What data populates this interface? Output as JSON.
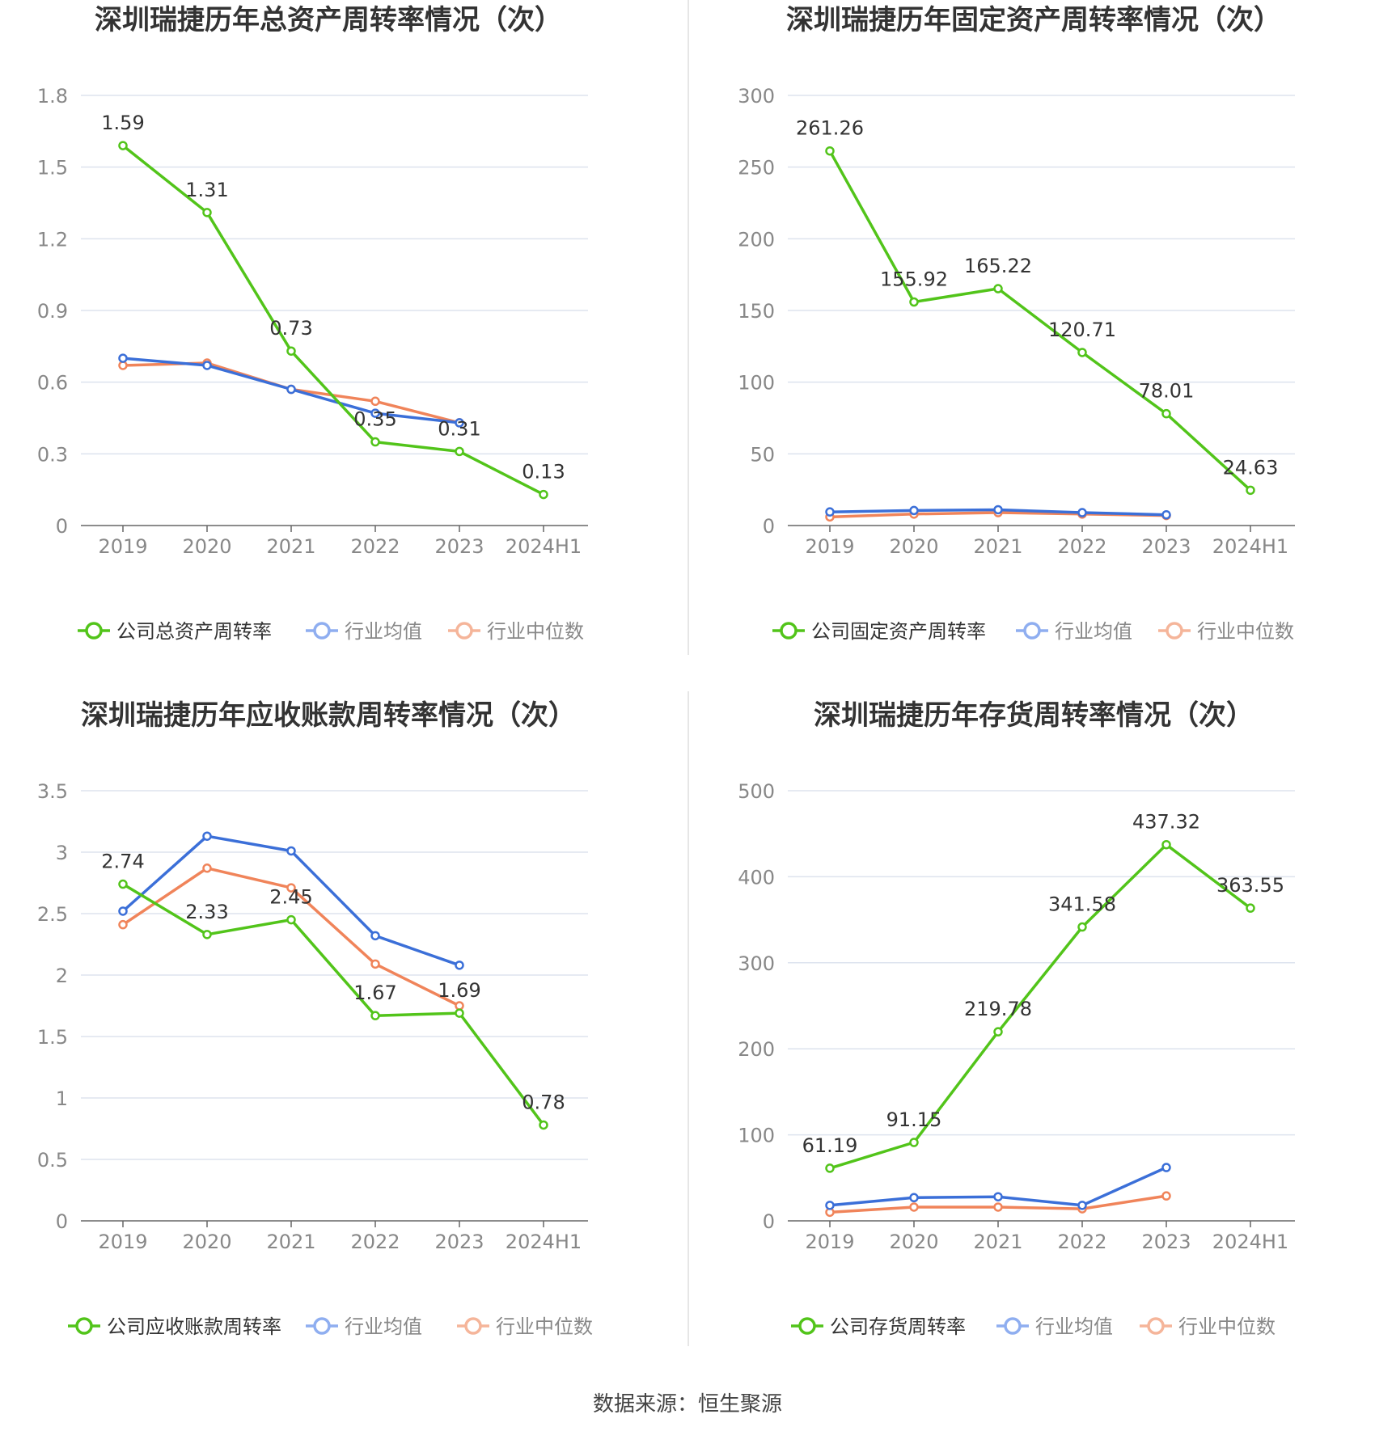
{
  "colors": {
    "company": "#52C41A",
    "avg": "#3B6FD8",
    "median": "#F0845A",
    "legend_avg": "#8FAEF0",
    "legend_median": "#F5B59A",
    "grid": "#DDE3EE",
    "axis": "#666666",
    "tick_text": "#888888",
    "title": "#333333",
    "label": "#333333"
  },
  "source": "数据来源：恒生聚源",
  "chart_data": [
    {
      "type": "line",
      "title": "深圳瑞捷历年总资产周转率情况（次）",
      "categories": [
        "2019",
        "2020",
        "2021",
        "2022",
        "2023",
        "2024H1"
      ],
      "ylim": [
        0,
        1.8
      ],
      "yticks": [
        "0",
        "0.3",
        "0.6",
        "0.9",
        "1.2",
        "1.5",
        "1.8"
      ],
      "ytick_values": [
        0,
        0.3,
        0.6,
        0.9,
        1.2,
        1.5,
        1.8
      ],
      "series": [
        {
          "name": "公司总资产周转率",
          "values": [
            1.59,
            1.31,
            0.73,
            0.35,
            0.31,
            0.13
          ],
          "labels": [
            "1.59",
            "1.31",
            "0.73",
            "0.35",
            "0.31",
            "0.13"
          ]
        },
        {
          "name": "行业均值",
          "values": [
            0.7,
            0.67,
            0.57,
            0.47,
            0.43,
            null
          ]
        },
        {
          "name": "行业中位数",
          "values": [
            0.67,
            0.68,
            0.57,
            0.52,
            0.43,
            null
          ]
        }
      ]
    },
    {
      "type": "line",
      "title": "深圳瑞捷历年固定资产周转率情况（次）",
      "categories": [
        "2019",
        "2020",
        "2021",
        "2022",
        "2023",
        "2024H1"
      ],
      "ylim": [
        0,
        300
      ],
      "yticks": [
        "0",
        "50",
        "100",
        "150",
        "200",
        "250",
        "300"
      ],
      "ytick_values": [
        0,
        50,
        100,
        150,
        200,
        250,
        300
      ],
      "series": [
        {
          "name": "公司固定资产周转率",
          "values": [
            261.26,
            155.92,
            165.22,
            120.71,
            78.01,
            24.63
          ],
          "labels": [
            "261.26",
            "155.92",
            "165.22",
            "120.71",
            "78.01",
            "24.63"
          ]
        },
        {
          "name": "行业均值",
          "values": [
            9.5,
            10.5,
            11,
            9,
            7.5,
            null
          ]
        },
        {
          "name": "行业中位数",
          "values": [
            6,
            8,
            9,
            8,
            7,
            null
          ]
        }
      ]
    },
    {
      "type": "line",
      "title": "深圳瑞捷历年应收账款周转率情况（次）",
      "categories": [
        "2019",
        "2020",
        "2021",
        "2022",
        "2023",
        "2024H1"
      ],
      "ylim": [
        0,
        3.5
      ],
      "yticks": [
        "0",
        "0.5",
        "1",
        "1.5",
        "2",
        "2.5",
        "3",
        "3.5"
      ],
      "ytick_values": [
        0,
        0.5,
        1,
        1.5,
        2,
        2.5,
        3,
        3.5
      ],
      "series": [
        {
          "name": "公司应收账款周转率",
          "values": [
            2.74,
            2.33,
            2.45,
            1.67,
            1.69,
            0.78
          ],
          "labels": [
            "2.74",
            "2.33",
            "2.45",
            "1.67",
            "1.69",
            "0.78"
          ]
        },
        {
          "name": "行业均值",
          "values": [
            2.52,
            3.13,
            3.01,
            2.32,
            2.08,
            null
          ]
        },
        {
          "name": "行业中位数",
          "values": [
            2.41,
            2.87,
            2.71,
            2.09,
            1.75,
            null
          ]
        }
      ]
    },
    {
      "type": "line",
      "title": "深圳瑞捷历年存货周转率情况（次）",
      "categories": [
        "2019",
        "2020",
        "2021",
        "2022",
        "2023",
        "2024H1"
      ],
      "ylim": [
        0,
        500
      ],
      "yticks": [
        "0",
        "100",
        "200",
        "300",
        "400",
        "500"
      ],
      "ytick_values": [
        0,
        100,
        200,
        300,
        400,
        500
      ],
      "series": [
        {
          "name": "公司存货周转率",
          "values": [
            61.19,
            91.15,
            219.78,
            341.58,
            437.32,
            363.55
          ],
          "labels": [
            "61.19",
            "91.15",
            "219.78",
            "341.58",
            "437.32",
            "363.55"
          ]
        },
        {
          "name": "行业均值",
          "values": [
            18,
            27,
            28,
            18,
            62,
            null
          ]
        },
        {
          "name": "行业中位数",
          "values": [
            10,
            16,
            16,
            14,
            29,
            null
          ]
        }
      ]
    }
  ]
}
